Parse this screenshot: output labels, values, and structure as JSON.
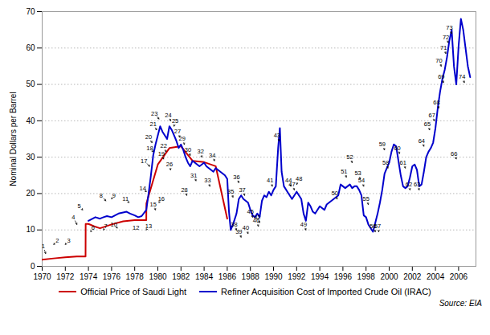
{
  "chart_data": {
    "type": "line",
    "ylabel": "Nominal Dollars per Barrel",
    "source": "Source: EIA",
    "xlim": [
      1970,
      2007.5
    ],
    "ylim": [
      0,
      70
    ],
    "yticks": [
      0,
      10,
      20,
      30,
      40,
      50,
      60,
      70
    ],
    "xticks": [
      1970,
      1972,
      1974,
      1976,
      1978,
      1980,
      1982,
      1984,
      1986,
      1988,
      1990,
      1992,
      1994,
      1996,
      1998,
      2000,
      2002,
      2004,
      2006
    ],
    "grid": "y",
    "legend": "bottom",
    "series": [
      {
        "name": "Official Price of Saudi Light",
        "color": "#cc0000",
        "x": [
          1970,
          1971,
          1972,
          1973.0,
          1973.75,
          1973.76,
          1974.0,
          1974.5,
          1975,
          1976,
          1977,
          1978,
          1979.0,
          1979.01,
          1980.0,
          1981.0,
          1982.0,
          1983.0,
          1984.0,
          1985.0,
          1986.0
        ],
        "values": [
          1.8,
          2.18,
          2.48,
          2.7,
          2.7,
          11.65,
          11.65,
          11.0,
          10.46,
          11.51,
          12.38,
          12.7,
          12.7,
          17.26,
          28.0,
          32.5,
          33.0,
          29.0,
          28.63,
          27.53,
          13.1
        ]
      },
      {
        "name": "Refiner Acquisition Cost of Imported Crude Oil (IRAC)",
        "color": "#0000cc",
        "x": [
          1974.0,
          1974.3,
          1974.6,
          1975.0,
          1975.3,
          1975.6,
          1976.0,
          1976.3,
          1976.6,
          1977.0,
          1977.3,
          1977.6,
          1978.0,
          1978.3,
          1978.6,
          1979.0,
          1979.2,
          1979.4,
          1979.6,
          1979.8,
          1980.0,
          1980.2,
          1980.4,
          1980.6,
          1980.8,
          1981.0,
          1981.2,
          1981.4,
          1981.6,
          1981.8,
          1982.0,
          1982.2,
          1982.4,
          1982.6,
          1982.8,
          1983.0,
          1983.2,
          1983.4,
          1983.6,
          1983.8,
          1984.0,
          1984.2,
          1984.4,
          1984.6,
          1984.8,
          1985.0,
          1985.2,
          1985.4,
          1985.6,
          1985.8,
          1986.0,
          1986.15,
          1986.3,
          1986.5,
          1986.65,
          1986.8,
          1987.0,
          1987.2,
          1987.4,
          1987.6,
          1987.8,
          1988.0,
          1988.2,
          1988.4,
          1988.6,
          1988.8,
          1989.0,
          1989.2,
          1989.4,
          1989.6,
          1989.8,
          1990.0,
          1990.2,
          1990.4,
          1990.55,
          1990.7,
          1990.9,
          1991.0,
          1991.2,
          1991.4,
          1991.6,
          1991.8,
          1992.0,
          1992.2,
          1992.4,
          1992.6,
          1992.8,
          1993.0,
          1993.2,
          1993.4,
          1993.6,
          1993.8,
          1994.0,
          1994.2,
          1994.4,
          1994.6,
          1994.8,
          1995.0,
          1995.2,
          1995.4,
          1995.6,
          1995.8,
          1996.0,
          1996.2,
          1996.4,
          1996.6,
          1996.8,
          1997.0,
          1997.2,
          1997.4,
          1997.6,
          1997.8,
          1998.0,
          1998.2,
          1998.4,
          1998.6,
          1998.8,
          1999.0,
          1999.2,
          1999.4,
          1999.6,
          1999.8,
          2000.0,
          2000.2,
          2000.4,
          2000.6,
          2000.8,
          2001.0,
          2001.2,
          2001.4,
          2001.6,
          2001.8,
          2002.0,
          2002.2,
          2002.4,
          2002.6,
          2002.8,
          2003.0,
          2003.2,
          2003.4,
          2003.6,
          2003.8,
          2004.0,
          2004.2,
          2004.4,
          2004.6,
          2004.8,
          2005.0,
          2005.2,
          2005.4,
          2005.6,
          2005.8,
          2006.0,
          2006.2,
          2006.4,
          2006.6,
          2006.8,
          2007.0
        ],
        "values": [
          12.5,
          13.0,
          13.5,
          13.1,
          13.5,
          13.8,
          13.5,
          14.0,
          14.5,
          14.8,
          15.0,
          14.5,
          14.0,
          13.5,
          13.8,
          15.5,
          20.0,
          25.0,
          30.5,
          33.5,
          36.0,
          38.5,
          37.0,
          36.0,
          35.0,
          38.5,
          37.5,
          36.0,
          34.5,
          32.5,
          33.5,
          32.0,
          30.0,
          28.5,
          27.5,
          29.0,
          28.5,
          28.0,
          27.5,
          28.0,
          28.5,
          27.5,
          27.0,
          26.5,
          26.0,
          27.0,
          26.5,
          26.0,
          25.5,
          25.0,
          24.0,
          15.0,
          10.0,
          11.5,
          13.0,
          14.5,
          18.5,
          19.5,
          18.5,
          18.0,
          17.5,
          15.5,
          14.0,
          13.5,
          14.5,
          13.5,
          18.0,
          19.5,
          19.0,
          20.5,
          19.5,
          21.0,
          22.0,
          32.5,
          38.0,
          26.0,
          22.0,
          21.5,
          20.5,
          19.5,
          18.5,
          19.5,
          20.5,
          19.5,
          18.5,
          14.5,
          12.5,
          17.5,
          16.5,
          15.0,
          14.5,
          15.5,
          16.5,
          16.0,
          15.5,
          17.0,
          17.5,
          18.0,
          18.5,
          19.0,
          19.5,
          22.5,
          22.0,
          21.5,
          22.0,
          22.5,
          21.5,
          22.0,
          22.0,
          21.0,
          19.5,
          14.0,
          13.5,
          11.5,
          10.5,
          9.5,
          12.0,
          14.5,
          17.5,
          21.0,
          25.5,
          27.0,
          28.5,
          31.5,
          33.5,
          33.0,
          29.0,
          25.0,
          22.0,
          21.5,
          22.0,
          24.5,
          27.5,
          28.0,
          26.5,
          22.0,
          22.5,
          26.0,
          30.0,
          31.5,
          32.5,
          34.0,
          38.0,
          43.5,
          48.0,
          51.5,
          54.0,
          57.5,
          62.0,
          65.0,
          55.0,
          50.0,
          60.5,
          68.0,
          65.0,
          60.0,
          55.0,
          52.0
        ]
      }
    ],
    "annotations": [
      {
        "text": "1",
        "x": 1970.3,
        "y": 3.5,
        "text_x": 1970.1,
        "text_y": 5.5
      },
      {
        "text": "2",
        "x": 1971.0,
        "y": 6.0,
        "text_x": 1971.3,
        "text_y": 7.0
      },
      {
        "text": "3",
        "x": 1972.0,
        "y": 6.0,
        "text_x": 1972.3,
        "text_y": 7.0
      },
      {
        "text": "4",
        "x": 1973.0,
        "y": 11.5,
        "text_x": 1972.7,
        "text_y": 13.5
      },
      {
        "text": "5",
        "x": 1973.5,
        "y": 15.5,
        "text_x": 1973.2,
        "text_y": 16.5
      },
      {
        "text": "6",
        "x": 1974.2,
        "y": 9.5,
        "text_x": 1974.4,
        "text_y": 10.5
      },
      {
        "text": "7",
        "x": 1975.3,
        "y": 10.0,
        "text_x": 1975.5,
        "text_y": 11.0
      },
      {
        "text": "8",
        "x": 1975.5,
        "y": 18.0,
        "text_x": 1975.1,
        "text_y": 19.5
      },
      {
        "text": "9",
        "x": 1976.0,
        "y": 18.5,
        "text_x": 1976.2,
        "text_y": 19.5
      },
      {
        "text": "10",
        "x": 1976.5,
        "y": 10.5,
        "text_x": 1976.2,
        "text_y": 11.5
      },
      {
        "text": "11",
        "x": 1977.5,
        "y": 17.5,
        "text_x": 1977.2,
        "text_y": 18.5
      },
      {
        "text": "12",
        "x": 1978.3,
        "y": 10.0,
        "text_x": 1978.1,
        "text_y": 10.5
      },
      {
        "text": "13",
        "x": 1979.0,
        "y": 10.0,
        "text_x": 1979.2,
        "text_y": 11.0
      },
      {
        "text": "14",
        "x": 1979.0,
        "y": 20.5,
        "text_x": 1978.7,
        "text_y": 21.5
      },
      {
        "text": "15",
        "x": 1979.8,
        "y": 15.5,
        "text_x": 1979.6,
        "text_y": 17.0
      },
      {
        "text": "16",
        "x": 1980.1,
        "y": 17.5,
        "text_x": 1980.3,
        "text_y": 18.5
      },
      {
        "text": "17",
        "x": 1979.3,
        "y": 27.5,
        "text_x": 1978.8,
        "text_y": 29.0
      },
      {
        "text": "18",
        "x": 1979.6,
        "y": 31.5,
        "text_x": 1979.3,
        "text_y": 32.5
      },
      {
        "text": "19",
        "x": 1980.5,
        "y": 29.5,
        "text_x": 1980.3,
        "text_y": 31.0
      },
      {
        "text": "20",
        "x": 1979.5,
        "y": 34.0,
        "text_x": 1979.2,
        "text_y": 35.5
      },
      {
        "text": "21",
        "x": 1979.9,
        "y": 37.5,
        "text_x": 1979.6,
        "text_y": 39.0
      },
      {
        "text": "22",
        "x": 1980.7,
        "y": 31.5,
        "text_x": 1980.5,
        "text_y": 33.0
      },
      {
        "text": "23",
        "x": 1980.1,
        "y": 40.5,
        "text_x": 1979.7,
        "text_y": 42.0
      },
      {
        "text": "24",
        "x": 1981.1,
        "y": 40.0,
        "text_x": 1980.9,
        "text_y": 41.5
      },
      {
        "text": "25",
        "x": 1981.4,
        "y": 38.5,
        "text_x": 1981.5,
        "text_y": 40.0
      },
      {
        "text": "26",
        "x": 1981.1,
        "y": 26.5,
        "text_x": 1981.0,
        "text_y": 28.0
      },
      {
        "text": "27",
        "x": 1981.9,
        "y": 35.5,
        "text_x": 1981.7,
        "text_y": 37.0
      },
      {
        "text": "28",
        "x": 1982.5,
        "y": 19.5,
        "text_x": 1982.3,
        "text_y": 21.0
      },
      {
        "text": "29",
        "x": 1982.3,
        "y": 33.5,
        "text_x": 1982.1,
        "text_y": 35.0
      },
      {
        "text": "30",
        "x": 1982.8,
        "y": 30.5,
        "text_x": 1982.6,
        "text_y": 32.0
      },
      {
        "text": "31",
        "x": 1983.3,
        "y": 23.5,
        "text_x": 1983.1,
        "text_y": 25.0
      },
      {
        "text": "32",
        "x": 1983.8,
        "y": 30.0,
        "text_x": 1983.7,
        "text_y": 31.5
      },
      {
        "text": "33",
        "x": 1984.5,
        "y": 22.0,
        "text_x": 1984.3,
        "text_y": 23.5
      },
      {
        "text": "34",
        "x": 1984.9,
        "y": 29.0,
        "text_x": 1984.7,
        "text_y": 30.5
      },
      {
        "text": "35",
        "x": 1986.5,
        "y": 19.0,
        "text_x": 1986.3,
        "text_y": 20.5
      },
      {
        "text": "36",
        "x": 1987.0,
        "y": 23.0,
        "text_x": 1986.8,
        "text_y": 24.5
      },
      {
        "text": "37",
        "x": 1987.5,
        "y": 19.5,
        "text_x": 1987.3,
        "text_y": 21.0
      },
      {
        "text": "38",
        "x": 1986.8,
        "y": 10.0,
        "text_x": 1986.6,
        "text_y": 11.5
      },
      {
        "text": "39",
        "x": 1987.2,
        "y": 8.0,
        "text_x": 1987.0,
        "text_y": 9.5
      },
      {
        "text": "40",
        "x": 1987.8,
        "y": 9.0,
        "text_x": 1987.6,
        "text_y": 10.5
      },
      {
        "text": "41",
        "x": 1989.9,
        "y": 22.0,
        "text_x": 1989.7,
        "text_y": 23.5
      },
      {
        "text": "42",
        "x": 1988.8,
        "y": 12.0,
        "text_x": 1988.6,
        "text_y": 13.5
      },
      {
        "text": "43",
        "x": 1990.5,
        "y": 34.5,
        "text_x": 1990.3,
        "text_y": 36.0
      },
      {
        "text": "44",
        "x": 1991.5,
        "y": 22.0,
        "text_x": 1991.3,
        "text_y": 23.5
      },
      {
        "text": "45",
        "x": 1988.2,
        "y": 13.5,
        "text_x": 1988.0,
        "text_y": 15.0
      },
      {
        "text": "46",
        "x": 1988.7,
        "y": 11.0,
        "text_x": 1988.5,
        "text_y": 12.5
      },
      {
        "text": "47",
        "x": 1991.8,
        "y": 21.0,
        "text_x": 1991.6,
        "text_y": 22.5
      },
      {
        "text": "48",
        "x": 1992.0,
        "y": 22.5,
        "text_x": 1992.2,
        "text_y": 24.0
      },
      {
        "text": "49",
        "x": 1992.8,
        "y": 10.0,
        "text_x": 1992.6,
        "text_y": 11.5
      },
      {
        "text": "50",
        "x": 1995.5,
        "y": 18.5,
        "text_x": 1995.3,
        "text_y": 20.0
      },
      {
        "text": "51",
        "x": 1996.3,
        "y": 24.5,
        "text_x": 1996.1,
        "text_y": 26.0
      },
      {
        "text": "52",
        "x": 1996.8,
        "y": 28.5,
        "text_x": 1996.6,
        "text_y": 30.0
      },
      {
        "text": "53",
        "x": 1997.5,
        "y": 24.0,
        "text_x": 1997.3,
        "text_y": 25.5
      },
      {
        "text": "54",
        "x": 1997.8,
        "y": 22.0,
        "text_x": 1997.6,
        "text_y": 23.5
      },
      {
        "text": "55",
        "x": 1998.2,
        "y": 17.0,
        "text_x": 1998.0,
        "text_y": 18.5
      },
      {
        "text": "56",
        "x": 1998.8,
        "y": 9.5,
        "text_x": 1998.6,
        "text_y": 11.0
      },
      {
        "text": "57",
        "x": 1999.1,
        "y": 9.5,
        "text_x": 1999.0,
        "text_y": 11.0
      },
      {
        "text": "58",
        "x": 1999.9,
        "y": 27.0,
        "text_x": 1999.7,
        "text_y": 28.5
      },
      {
        "text": "59",
        "x": 1999.6,
        "y": 32.0,
        "text_x": 1999.4,
        "text_y": 33.5
      },
      {
        "text": "60",
        "x": 2000.9,
        "y": 31.0,
        "text_x": 2000.7,
        "text_y": 32.5
      },
      {
        "text": "61",
        "x": 2001.4,
        "y": 27.0,
        "text_x": 2001.2,
        "text_y": 28.5
      },
      {
        "text": "62",
        "x": 2001.8,
        "y": 21.0,
        "text_x": 2001.7,
        "text_y": 22.5
      },
      {
        "text": "63",
        "x": 2002.6,
        "y": 21.0,
        "text_x": 2002.4,
        "text_y": 22.5
      },
      {
        "text": "64",
        "x": 2003.0,
        "y": 33.0,
        "text_x": 2002.8,
        "text_y": 34.5
      },
      {
        "text": "65",
        "x": 2003.5,
        "y": 37.5,
        "text_x": 2003.3,
        "text_y": 39.0
      },
      {
        "text": "66",
        "x": 2005.8,
        "y": 29.5,
        "text_x": 2005.6,
        "text_y": 31.0
      },
      {
        "text": "67",
        "x": 2003.9,
        "y": 40.0,
        "text_x": 2003.7,
        "text_y": 41.5
      },
      {
        "text": "68",
        "x": 2004.3,
        "y": 43.5,
        "text_x": 2004.1,
        "text_y": 45.0
      },
      {
        "text": "69",
        "x": 2004.7,
        "y": 50.5,
        "text_x": 2004.5,
        "text_y": 52.0
      },
      {
        "text": "70",
        "x": 2004.5,
        "y": 55.0,
        "text_x": 2004.3,
        "text_y": 56.5
      },
      {
        "text": "71",
        "x": 2004.9,
        "y": 58.5,
        "text_x": 2004.7,
        "text_y": 60.0
      },
      {
        "text": "72",
        "x": 2005.1,
        "y": 61.5,
        "text_x": 2004.9,
        "text_y": 63.0
      },
      {
        "text": "73",
        "x": 2005.4,
        "y": 64.0,
        "text_x": 2005.2,
        "text_y": 65.5
      },
      {
        "text": "74",
        "x": 2006.5,
        "y": 50.5,
        "text_x": 2006.3,
        "text_y": 52.0
      }
    ]
  }
}
